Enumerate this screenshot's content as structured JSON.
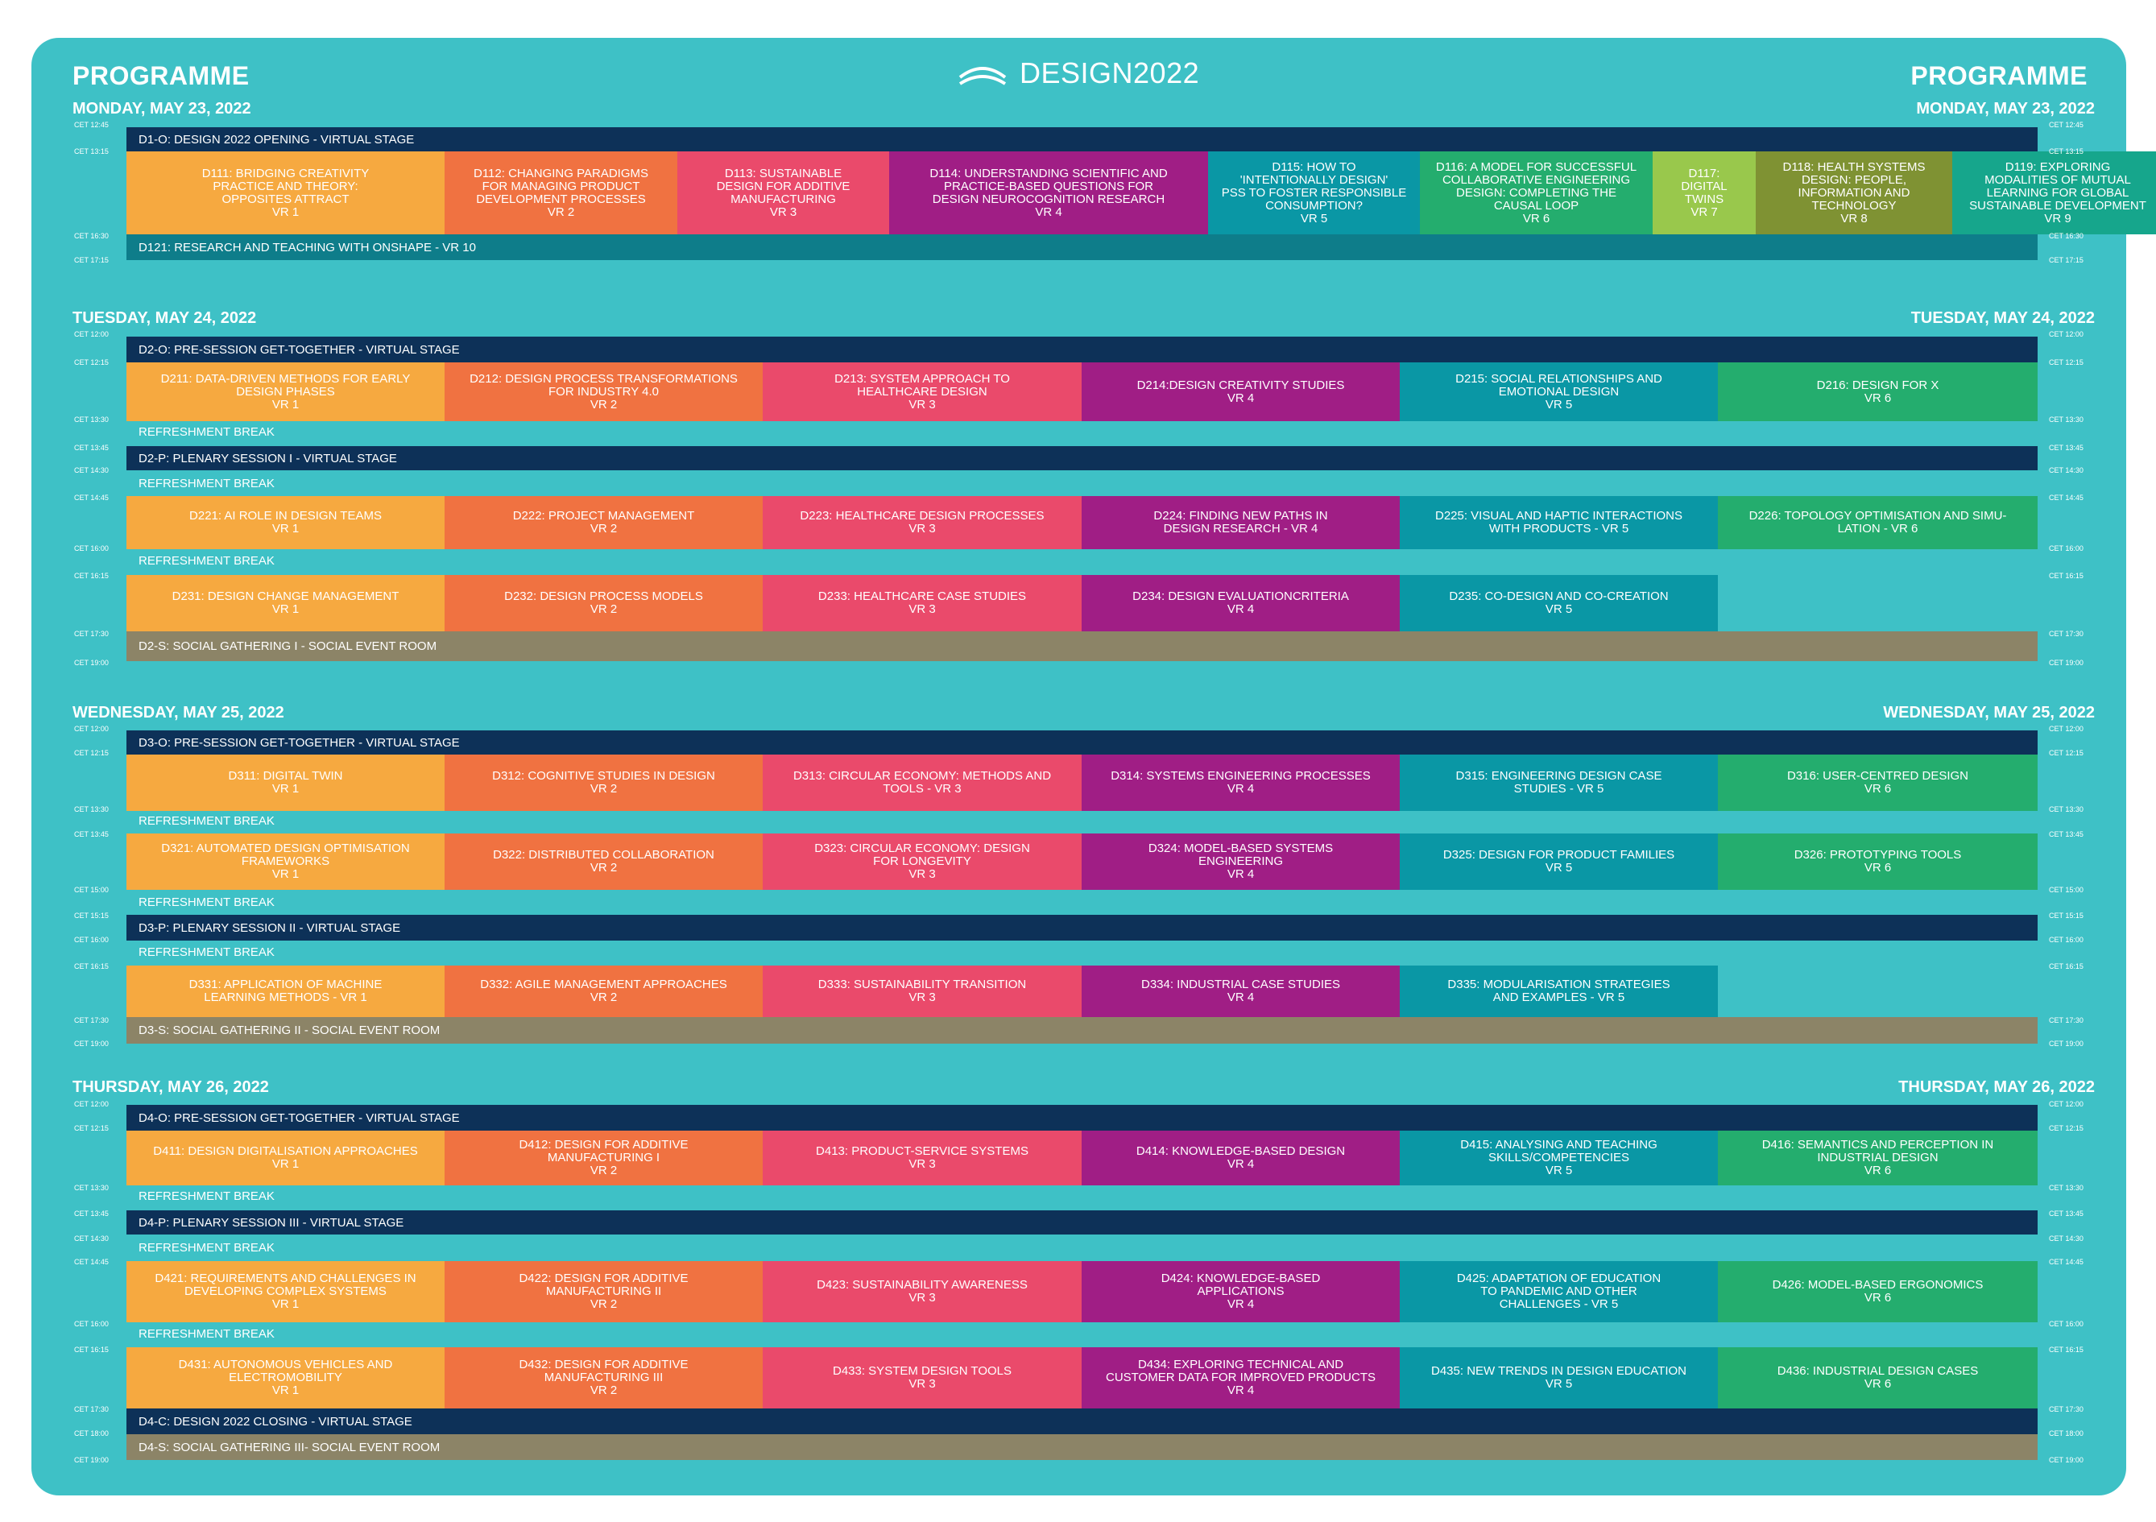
{
  "header": {
    "programme": "PROGRAMME",
    "logo": "DESIGN2022"
  },
  "days": [
    {
      "title": "MONDAY, MAY 23, 2022",
      "times": [
        "CET 12:45",
        "CET 13:15",
        "CET 16:30",
        "CET 17:15"
      ],
      "opening": "D1-O: DESIGN 2022 OPENING - VIRTUAL STAGE",
      "sessions": [
        {
          "label": "D111: BRIDGING CREATIVITY\nPRACTICE AND THEORY:\nOPPOSITES ATTRACT\nVR 1",
          "color": "#f6a940"
        },
        {
          "label": "D112: CHANGING PARADIGMS\nFOR MANAGING PRODUCT\nDEVELOPMENT PROCESSES\nVR 2",
          "color": "#f07241"
        },
        {
          "label": "D113: SUSTAINABLE\nDESIGN FOR ADDITIVE\nMANUFACTURING\nVR 3",
          "color": "#ea4a6b"
        },
        {
          "label": "D114: UNDERSTANDING SCIENTIFIC AND\nPRACTICE-BASED QUESTIONS FOR\nDESIGN NEUROCOGNITION RESEARCH\nVR 4",
          "color": "#a01e85"
        },
        {
          "label": "D115: HOW TO\n'INTENTIONALLY DESIGN'\nPSS TO FOSTER RESPONSIBLE\nCONSUMPTION?\nVR 5",
          "color": "#0a97a5"
        },
        {
          "label": "D116: A MODEL FOR SUCCESSFUL\nCOLLABORATIVE ENGINEERING\nDESIGN: COMPLETING THE\nCAUSAL LOOP\nVR 6",
          "color": "#24ad6e"
        },
        {
          "label": "D117:\nDIGITAL\nTWINS\nVR 7",
          "color": "#99c84c"
        },
        {
          "label": "D118: HEALTH SYSTEMS\nDESIGN: PEOPLE,\nINFORMATION AND\nTECHNOLOGY\nVR 8",
          "color": "#7f9233"
        },
        {
          "label": "D119: EXPLORING\nMODALITIES OF MUTUAL\nLEARNING FOR GLOBAL\nSUSTAINABLE DEVELOPMENT\nVR 9",
          "color": "#16a68c"
        }
      ],
      "research": "D121: RESEARCH AND TEACHING WITH ONSHAPE - VR 10"
    },
    {
      "title": "TUESDAY, MAY 24, 2022",
      "times": [
        "CET 12:00",
        "CET 12:15",
        "CET 13:30",
        "CET 13:45",
        "CET 14:30",
        "CET 14:45",
        "CET 16:00",
        "CET 16:15",
        "CET 17:30",
        "CET 19:00"
      ],
      "pre": "D2-O: PRE-SESSION GET-TOGETHER - VIRTUAL STAGE",
      "break": "REFRESHMENT BREAK",
      "plenary": "D2-P: PLENARY SESSION I - VIRTUAL STAGE",
      "social": "D2-S: SOCIAL GATHERING I - SOCIAL EVENT ROOM",
      "rows": [
        [
          "D211: DATA-DRIVEN METHODS FOR EARLY\nDESIGN PHASES\nVR 1",
          "D212: DESIGN PROCESS TRANSFORMATIONS\nFOR INDUSTRY 4.0\nVR 2",
          "D213: SYSTEM APPROACH TO\nHEALTHCARE DESIGN\nVR 3",
          "D214:DESIGN CREATIVITY STUDIES\nVR 4",
          "D215: SOCIAL RELATIONSHIPS AND\nEMOTIONAL DESIGN\nVR 5",
          "D216: DESIGN FOR X\nVR 6"
        ],
        [
          "D221: AI ROLE IN DESIGN TEAMS\nVR 1",
          "D222: PROJECT MANAGEMENT\nVR 2",
          "D223: HEALTHCARE DESIGN PROCESSES\nVR 3",
          "D224: FINDING NEW PATHS IN\nDESIGN RESEARCH - VR 4",
          "D225: VISUAL AND HAPTIC INTERACTIONS\nWITH PRODUCTS - VR 5",
          "D226: TOPOLOGY OPTIMISATION AND SIMU-\nLATION - VR 6"
        ],
        [
          "D231: DESIGN CHANGE MANAGEMENT\nVR 1",
          "D232: DESIGN PROCESS MODELS\nVR 2",
          "D233: HEALTHCARE CASE STUDIES\nVR 3",
          "D234: DESIGN EVALUATIONCRITERIA\nVR 4",
          "D235: CO-DESIGN AND CO-CREATION\nVR 5"
        ]
      ]
    },
    {
      "title": "WEDNESDAY, MAY 25, 2022",
      "times": [
        "CET 12:00",
        "CET 12:15",
        "CET 13:30",
        "CET 13:45",
        "CET 15:00",
        "CET 15:15",
        "CET 16:00",
        "CET 16:15",
        "CET 17:30",
        "CET 19:00"
      ],
      "pre": "D3-O: PRE-SESSION GET-TOGETHER - VIRTUAL STAGE",
      "break": "REFRESHMENT BREAK",
      "plenary": "D3-P: PLENARY SESSION II - VIRTUAL STAGE",
      "social": "D3-S: SOCIAL GATHERING II - SOCIAL EVENT ROOM",
      "rows": [
        [
          "D311: DIGITAL TWIN\nVR 1",
          "D312: COGNITIVE STUDIES IN DESIGN\nVR 2",
          "D313: CIRCULAR ECONOMY: METHODS AND\nTOOLS - VR 3",
          "D314: SYSTEMS ENGINEERING PROCESSES\nVR 4",
          "D315: ENGINEERING DESIGN CASE\nSTUDIES - VR 5",
          "D316: USER-CENTRED DESIGN\nVR 6"
        ],
        [
          "D321: AUTOMATED DESIGN OPTIMISATION\nFRAMEWORKS\nVR 1",
          "D322: DISTRIBUTED COLLABORATION\nVR 2",
          "D323: CIRCULAR ECONOMY: DESIGN\nFOR LONGEVITY\nVR 3",
          "D324: MODEL-BASED SYSTEMS\nENGINEERING\nVR 4",
          "D325: DESIGN FOR PRODUCT FAMILIES\nVR 5",
          "D326: PROTOTYPING TOOLS\nVR 6"
        ],
        [
          "D331: APPLICATION OF MACHINE\nLEARNING METHODS - VR 1",
          "D332: AGILE MANAGEMENT APPROACHES\nVR 2",
          "D333: SUSTAINABILITY TRANSITION\nVR 3",
          "D334: INDUSTRIAL CASE STUDIES\nVR 4",
          "D335: MODULARISATION STRATEGIES\nAND EXAMPLES - VR 5"
        ]
      ]
    },
    {
      "title": "THURSDAY, MAY 26, 2022",
      "times": [
        "CET 12:00",
        "CET 12:15",
        "CET 13:30",
        "CET 13:45",
        "CET 14:30",
        "CET 14:45",
        "CET 16:00",
        "CET 16:15",
        "CET 17:30",
        "CET 18:00",
        "CET 19:00"
      ],
      "pre": "D4-O: PRE-SESSION GET-TOGETHER - VIRTUAL STAGE",
      "break": "REFRESHMENT BREAK",
      "plenary": "D4-P: PLENARY SESSION III - VIRTUAL STAGE",
      "closing": "D4-C: DESIGN 2022 CLOSING - VIRTUAL STAGE",
      "social": "D4-S: SOCIAL GATHERING III- SOCIAL EVENT ROOM",
      "rows": [
        [
          "D411: DESIGN DIGITALISATION APPROACHES\nVR 1",
          "D412: DESIGN FOR ADDITIVE\nMANUFACTURING I\nVR 2",
          "D413: PRODUCT-SERVICE SYSTEMS\nVR 3",
          "D414: KNOWLEDGE-BASED DESIGN\nVR 4",
          "D415: ANALYSING AND TEACHING\nSKILLS/COMPETENCIES\nVR 5",
          "D416: SEMANTICS AND PERCEPTION IN\nINDUSTRIAL DESIGN\nVR 6"
        ],
        [
          "D421: REQUIREMENTS AND CHALLENGES IN\nDEVELOPING COMPLEX SYSTEMS\nVR 1",
          "D422: DESIGN FOR ADDITIVE\nMANUFACTURING II\nVR 2",
          "D423: SUSTAINABILITY AWARENESS\nVR 3",
          "D424: KNOWLEDGE-BASED\nAPPLICATIONS\nVR 4",
          "D425: ADAPTATION OF EDUCATION\nTO PANDEMIC AND OTHER\nCHALLENGES - VR 5",
          "D426: MODEL-BASED ERGONOMICS\nVR 6"
        ],
        [
          "D431: AUTONOMOUS VEHICLES AND\nELECTROMOBILITY\nVR 1",
          "D432: DESIGN FOR ADDITIVE\nMANUFACTURING III\nVR 2",
          "D433: SYSTEM DESIGN TOOLS\nVR 3",
          "D434: EXPLORING TECHNICAL AND\nCUSTOMER DATA FOR IMPROVED PRODUCTS\nVR 4",
          "D435: NEW TRENDS IN DESIGN EDUCATION\nVR 5",
          "D436: INDUSTRIAL DESIGN CASES\nVR 6"
        ]
      ]
    }
  ],
  "colors": {
    "background": "#3ec1c6",
    "virtual_stage": "#0d3158",
    "research": "#0e7d8a",
    "social": "#8c8467",
    "col": [
      "#f6a940",
      "#f07241",
      "#ea4a6b",
      "#a01e85",
      "#0a97a5",
      "#24ad6e"
    ]
  }
}
